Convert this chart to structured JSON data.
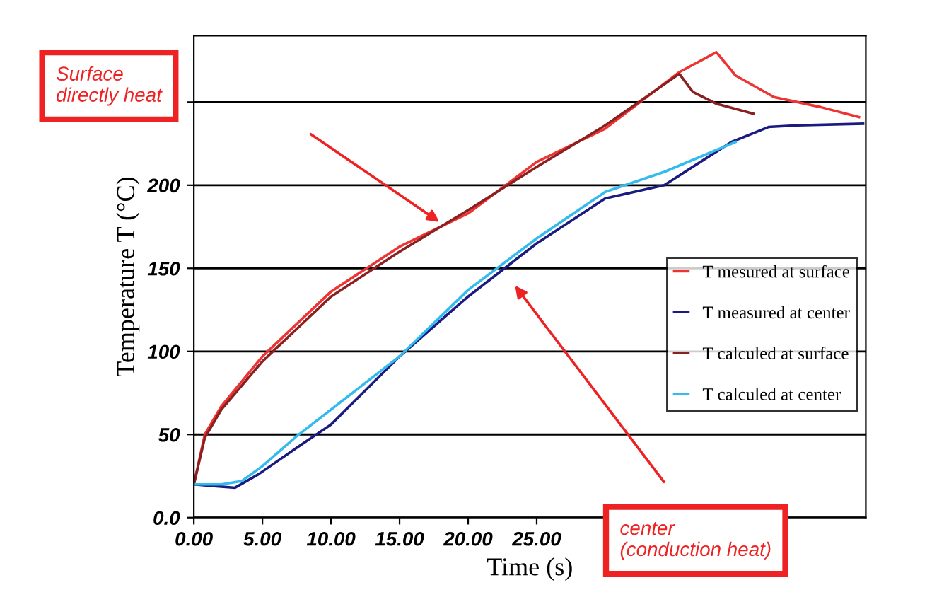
{
  "chart_data": {
    "type": "line",
    "xlabel": "Time (s)",
    "ylabel": "Temperature T (°C)",
    "xlim": [
      0,
      49
    ],
    "ylim": [
      0,
      290
    ],
    "xticks": [
      {
        "value": 0,
        "label": "0.00"
      },
      {
        "value": 5,
        "label": "5.00"
      },
      {
        "value": 10,
        "label": "10.00"
      },
      {
        "value": 15,
        "label": "15.00"
      },
      {
        "value": 20,
        "label": "20.00"
      },
      {
        "value": 25,
        "label": "25.00"
      }
    ],
    "yticks": [
      {
        "value": 0,
        "label": "0.0"
      },
      50,
      100,
      150,
      200,
      {
        "value": 250,
        "label": null
      }
    ],
    "grid": "y",
    "legend": "right",
    "marker": "none",
    "line_style": "solid",
    "series": [
      {
        "name": "T mesured at surface",
        "color": "#ee3333",
        "x": [
          0,
          0.8,
          2,
          5,
          10,
          15,
          20,
          25,
          30,
          35.4,
          38.1,
          39.5,
          42.3,
          45.7,
          48.5
        ],
        "values": [
          20,
          50,
          67,
          97,
          136,
          163,
          183,
          214,
          234,
          268,
          280,
          266,
          253,
          247,
          241
        ]
      },
      {
        "name": "T measured at center",
        "color": "#1a1a80",
        "x": [
          0,
          1.5,
          3,
          4.7,
          7.5,
          10,
          15,
          20,
          25,
          30,
          34.3,
          39.2,
          41.9,
          44,
          48.8
        ],
        "values": [
          20,
          19,
          18,
          26,
          42,
          56,
          97,
          133,
          165,
          192,
          200,
          226,
          235,
          236,
          237
        ]
      },
      {
        "name": "T calculed at surface",
        "color": "#8b2020",
        "x": [
          0,
          0.8,
          2,
          5,
          10,
          15,
          20,
          25,
          30,
          35.4,
          36.4,
          38.1,
          40.8
        ],
        "values": [
          20,
          48,
          65,
          94,
          133,
          160,
          185,
          211,
          236,
          267,
          256,
          249,
          243
        ]
      },
      {
        "name": "T calculed at center",
        "color": "#33bbee",
        "x": [
          0,
          2,
          3.5,
          5,
          7.5,
          10,
          15,
          20,
          25,
          30,
          34.3,
          39.5
        ],
        "values": [
          20,
          20,
          22,
          31,
          49,
          65,
          97,
          137,
          168,
          196,
          208,
          226
        ]
      }
    ],
    "annotations": [
      "Surface\ndirectly heat",
      "center\n(conduction heat)"
    ]
  }
}
